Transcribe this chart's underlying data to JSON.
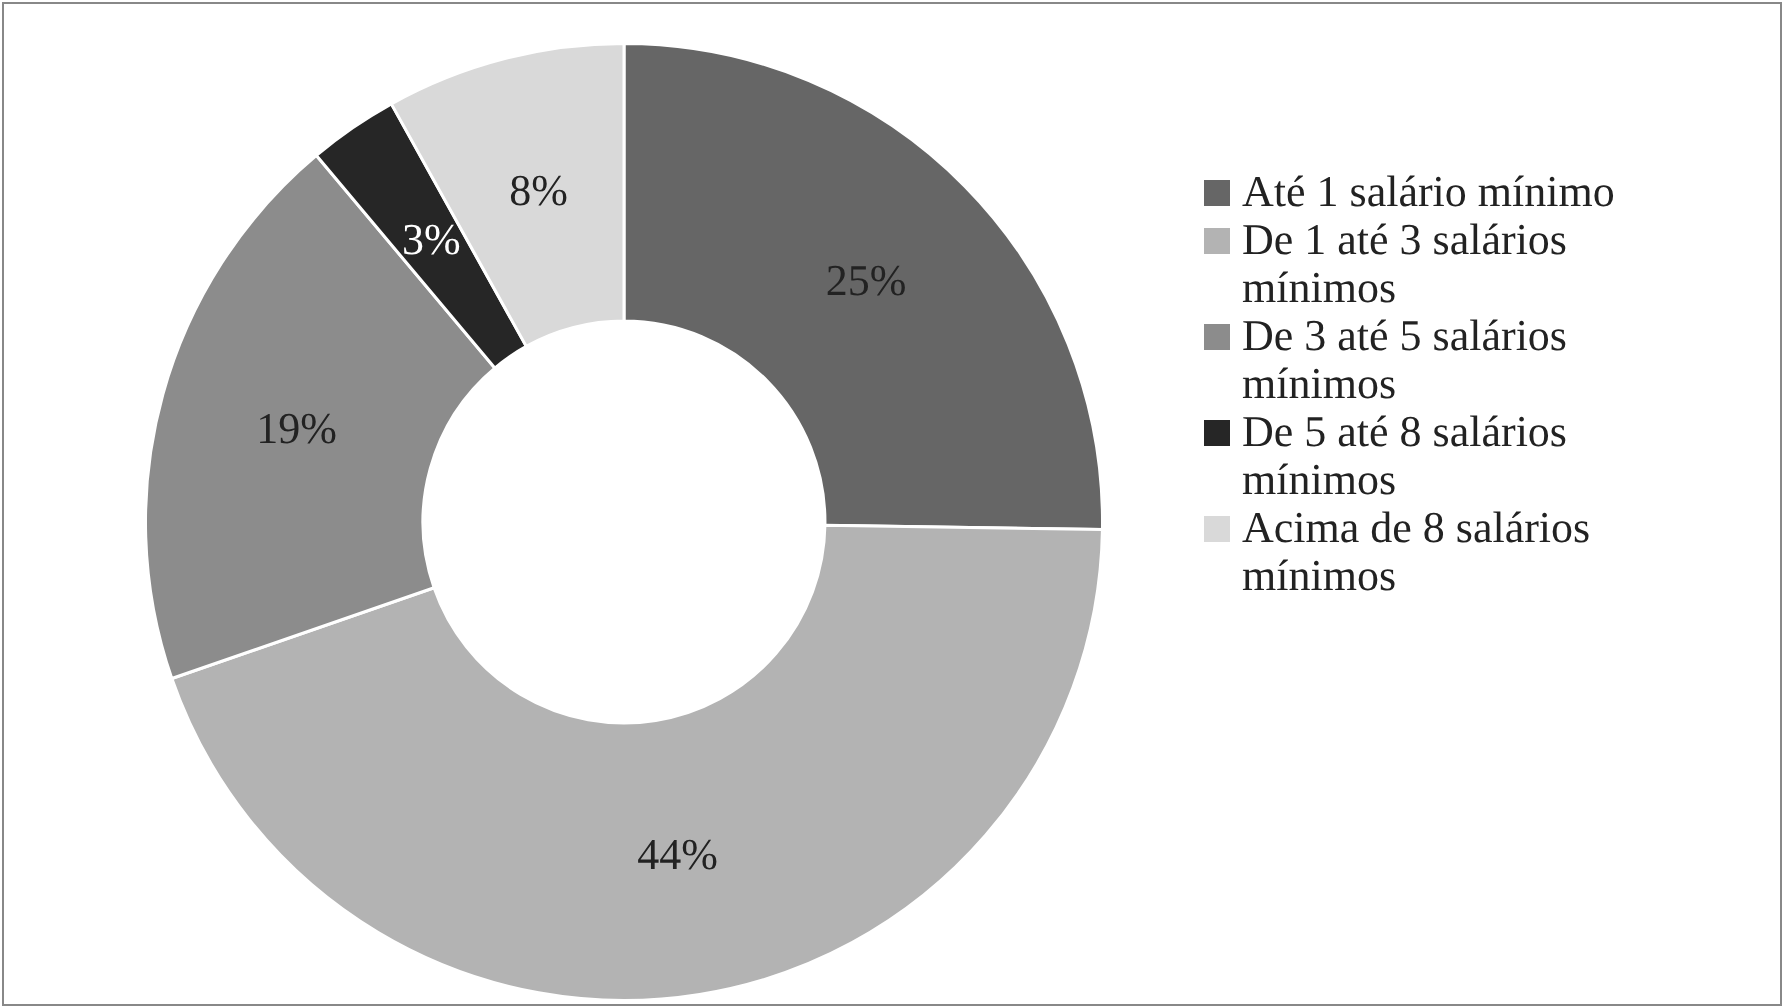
{
  "chart_data": {
    "type": "donut",
    "categories": [
      "Até 1 salário mínimo",
      "De 1 até 3 salários mínimos",
      "De 3 até 5 salários mínimos",
      "De 5 até 8 salários mínimos",
      "Acima de 8 salários mínimos"
    ],
    "values": [
      25,
      44,
      19,
      3,
      8
    ],
    "value_labels": [
      "25%",
      "44%",
      "19%",
      "3%",
      "8%"
    ],
    "colors": [
      "#666666",
      "#b3b3b3",
      "#8c8c8c",
      "#262626",
      "#d9d9d9"
    ],
    "legend": "right"
  }
}
